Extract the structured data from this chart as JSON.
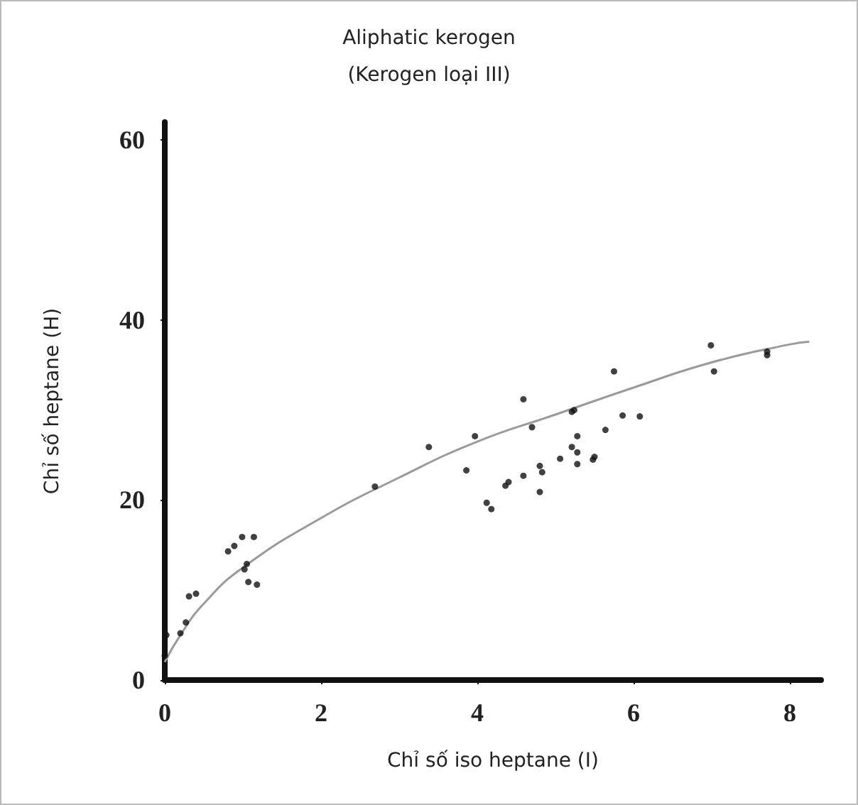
{
  "chart_data": {
    "type": "scatter",
    "title": "Aliphatic kerogen",
    "subtitle": "(Kerogen loại III)",
    "xlabel": "Chỉ số iso heptane (I)",
    "ylabel": "Chỉ số heptane (H)",
    "xlim": [
      0,
      8.4
    ],
    "ylim": [
      0,
      62
    ],
    "xticks": [
      0,
      2,
      4,
      6,
      8
    ],
    "yticks": [
      0,
      20,
      40,
      60
    ],
    "grid": false,
    "marker": "circle",
    "series": [
      {
        "color": "#111111",
        "x": [
          0.02,
          0,
          0.2,
          0.27,
          0.31,
          0.4,
          0.81,
          0.89,
          0.99,
          1.14,
          1.05,
          1.02,
          1.07,
          1.18,
          2.69,
          3.38,
          3.97,
          3.86,
          4.59,
          4.12,
          4.18,
          4.36,
          4.4,
          4.59,
          4.7,
          4.8,
          4.83,
          4.8,
          5.06,
          5.21,
          5.24,
          5.21,
          5.28,
          5.28,
          5.28,
          5.48,
          5.5,
          5.64,
          5.75,
          5.86,
          6.08,
          6.99,
          7.03,
          7.71,
          7.71
        ],
        "values": [
          5,
          2.7,
          5.2,
          6.4,
          9.3,
          9.6,
          14.3,
          14.9,
          15.9,
          15.9,
          12.9,
          12.3,
          10.9,
          10.6,
          21.5,
          25.9,
          27.1,
          23.3,
          31.2,
          19.7,
          19,
          21.6,
          22,
          22.7,
          28.1,
          23.8,
          23.1,
          20.9,
          24.6,
          29.8,
          30,
          25.9,
          27.1,
          25.3,
          24,
          24.5,
          24.8,
          27.8,
          34.3,
          29.4,
          29.3,
          37.2,
          34.3,
          36.5,
          36.1
        ]
      },
      {
        "type": "line",
        "color": "#9a9a9a",
        "marker": "none",
        "x": [
          0,
          0.2,
          0.5,
          1,
          2,
          3,
          4,
          5,
          6,
          7,
          8,
          8.25
        ],
        "values": [
          2,
          5,
          8.5,
          12.5,
          18,
          22.5,
          26.5,
          29.5,
          32.5,
          35.3,
          37.3,
          37.6
        ]
      }
    ]
  }
}
